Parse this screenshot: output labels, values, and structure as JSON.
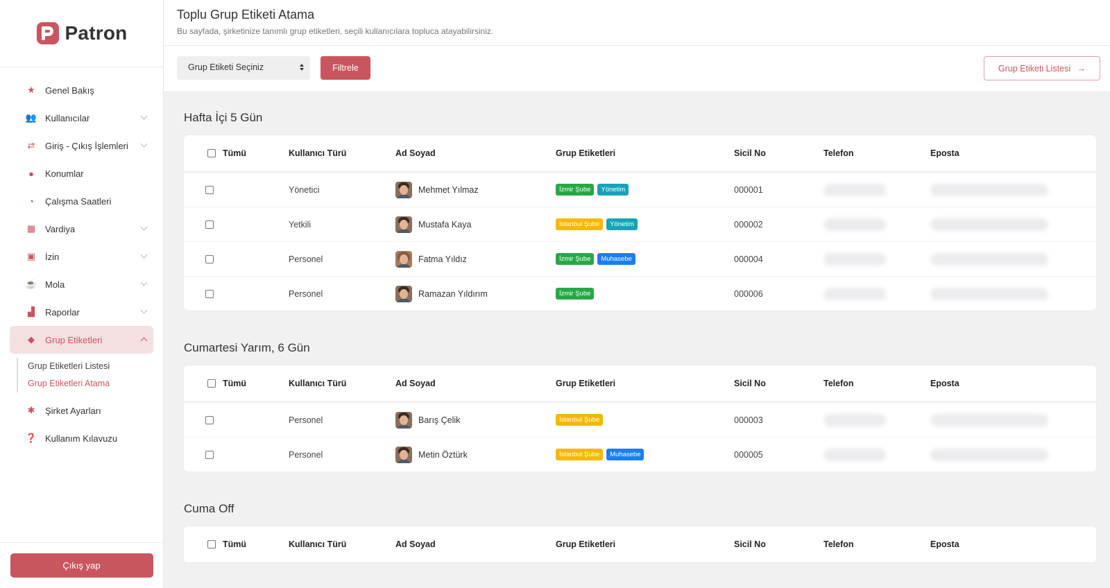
{
  "brand": {
    "name": "Patron",
    "color": "#c9555f"
  },
  "sidebar": {
    "items": [
      {
        "label": "Genel Bakış",
        "icon": "star-icon",
        "chevron": false
      },
      {
        "label": "Kullanıcılar",
        "icon": "users-icon",
        "chevron": true
      },
      {
        "label": "Giriş - Çıkış İşlemleri",
        "icon": "exchange-icon",
        "chevron": true
      },
      {
        "label": "Konumlar",
        "icon": "map-pin-icon",
        "chevron": false
      },
      {
        "label": "Çalışma Saatleri",
        "icon": "clock-icon",
        "chevron": false
      },
      {
        "label": "Vardiya",
        "icon": "calendar-icon",
        "chevron": true
      },
      {
        "label": "İzin",
        "icon": "calendar-check-icon",
        "chevron": true
      },
      {
        "label": "Mola",
        "icon": "coffee-icon",
        "chevron": true
      },
      {
        "label": "Raporlar",
        "icon": "chart-icon",
        "chevron": true
      },
      {
        "label": "Grup Etiketleri",
        "icon": "tag-icon",
        "chevron": true,
        "active": true
      },
      {
        "label": "Şirket Ayarları",
        "icon": "gear-icon",
        "chevron": false
      },
      {
        "label": "Kullanım Kılavuzu",
        "icon": "help-icon",
        "chevron": false
      }
    ],
    "submenu": [
      "Grup Etiketleri Listesi",
      "Grup Etiketleri Atama"
    ],
    "logout": "Çıkış yap"
  },
  "header": {
    "title": "Toplu Grup Etiketi Atama",
    "subtitle": "Bu sayfada, şirketinize tanımlı grup etiketleri, seçili kullanıcılara topluca atayabilirsiniz."
  },
  "toolbar": {
    "select_value": "Grup Etiketi Seçiniz",
    "filter_label": "Filtrele",
    "list_label": "Grup Etiketi Listesi"
  },
  "columns": {
    "all": "Tümü",
    "type": "Kullanıcı Türü",
    "name": "Ad Soyad",
    "tags": "Grup Etiketleri",
    "sicil": "Sicil No",
    "tel": "Telefon",
    "mail": "Eposta"
  },
  "tag_colors": {
    "İzmir Şube": "#27a844",
    "Yönetim": "#17a2b8",
    "İstanbul Şube": "#f5b800",
    "Muhasebe": "#1a7ef5"
  },
  "groups": [
    {
      "title": "Hafta İçi 5 Gün",
      "rows": [
        {
          "type": "Yönetici",
          "name": "Mehmet Yılmaz",
          "tags": [
            "İzmir Şube",
            "Yönetim"
          ],
          "sicil": "000001",
          "female": false
        },
        {
          "type": "Yetkili",
          "name": "Mustafa Kaya",
          "tags": [
            "İstanbul Şube",
            "Yönetim"
          ],
          "sicil": "000002",
          "female": false
        },
        {
          "type": "Personel",
          "name": "Fatma Yıldız",
          "tags": [
            "İzmir Şube",
            "Muhasebe"
          ],
          "sicil": "000004",
          "female": true
        },
        {
          "type": "Personel",
          "name": "Ramazan Yıldırım",
          "tags": [
            "İzmir Şube"
          ],
          "sicil": "000006",
          "female": false
        }
      ]
    },
    {
      "title": "Cumartesi Yarım, 6 Gün",
      "rows": [
        {
          "type": "Personel",
          "name": "Barış Çelik",
          "tags": [
            "İstanbul Şube"
          ],
          "sicil": "000003",
          "female": false
        },
        {
          "type": "Personel",
          "name": "Metin Öztürk",
          "tags": [
            "İstanbul Şube",
            "Muhasebe"
          ],
          "sicil": "000005",
          "female": false
        }
      ]
    },
    {
      "title": "Cuma Off",
      "rows": []
    }
  ]
}
